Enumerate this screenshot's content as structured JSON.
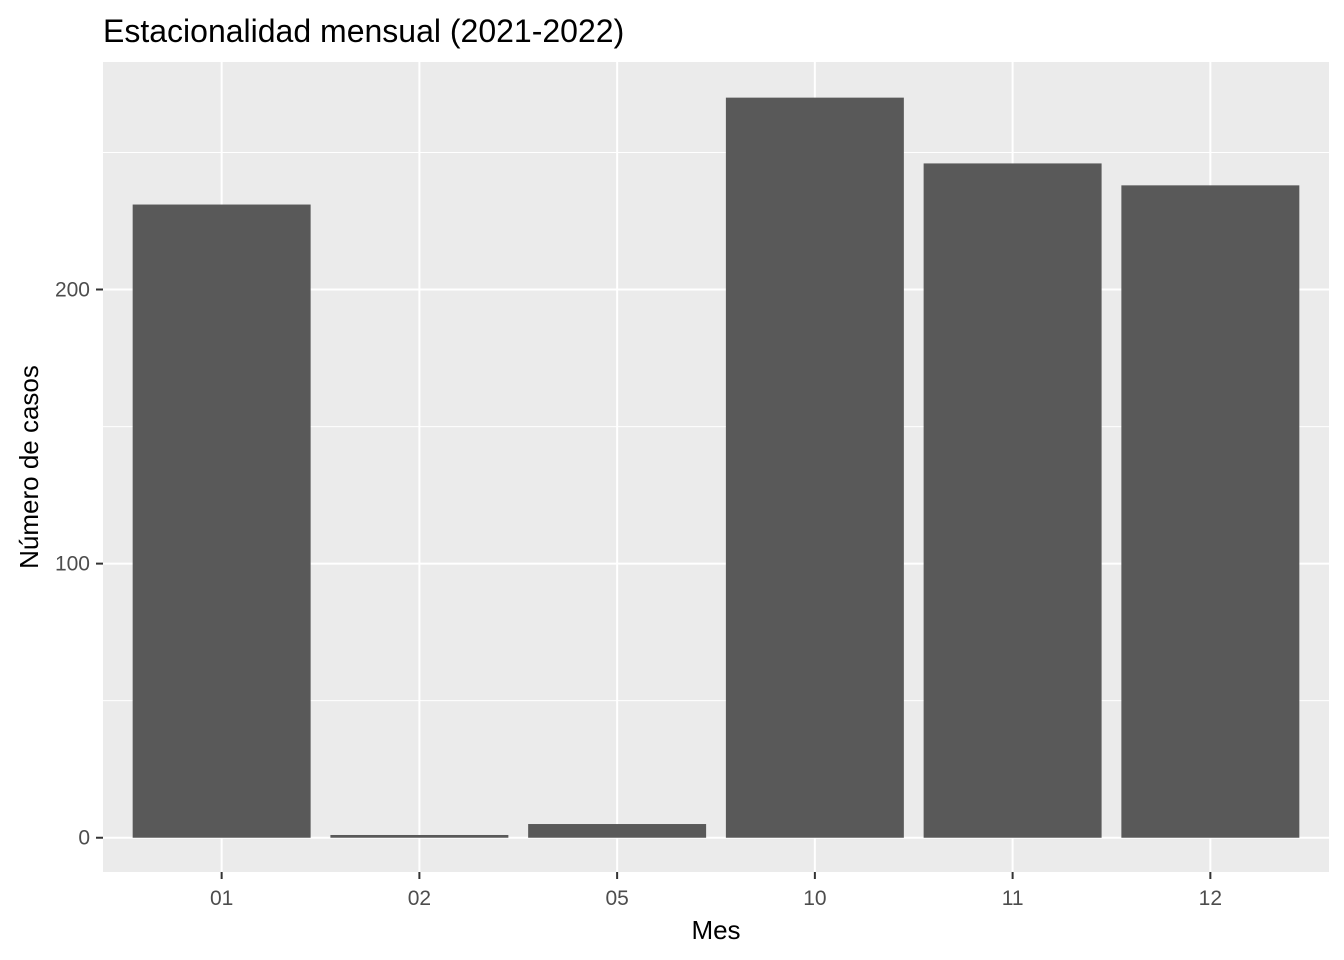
{
  "chart_data": {
    "type": "bar",
    "title": "Estacionalidad mensual (2021-2022)",
    "xlabel": "Mes",
    "ylabel": "Número de casos",
    "categories": [
      "01",
      "02",
      "05",
      "10",
      "11",
      "12"
    ],
    "values": [
      231,
      1,
      5,
      270,
      246,
      238
    ],
    "ylim": [
      -12.5,
      283
    ],
    "yticks": [
      0,
      100,
      200
    ],
    "grid": true,
    "legend": "none",
    "colors": {
      "panel_background": "#EBEBEB",
      "grid": "#FFFFFF",
      "bar": "#595959",
      "tick_text": "#4D4D4D",
      "tick_mark": "#333333"
    }
  }
}
